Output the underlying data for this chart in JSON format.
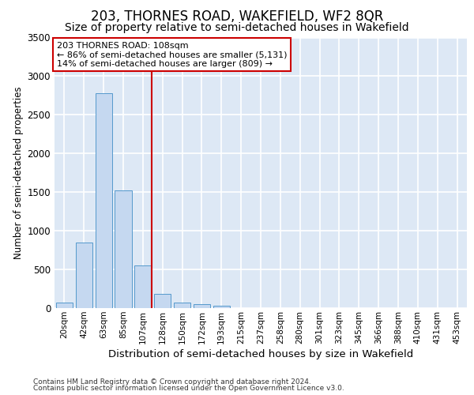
{
  "title1": "203, THORNES ROAD, WAKEFIELD, WF2 8QR",
  "title2": "Size of property relative to semi-detached houses in Wakefield",
  "xlabel": "Distribution of semi-detached houses by size in Wakefield",
  "ylabel": "Number of semi-detached properties",
  "footnote1": "Contains HM Land Registry data © Crown copyright and database right 2024.",
  "footnote2": "Contains public sector information licensed under the Open Government Licence v3.0.",
  "bar_labels": [
    "20sqm",
    "42sqm",
    "63sqm",
    "85sqm",
    "107sqm",
    "128sqm",
    "150sqm",
    "172sqm",
    "193sqm",
    "215sqm",
    "237sqm",
    "258sqm",
    "280sqm",
    "301sqm",
    "323sqm",
    "345sqm",
    "366sqm",
    "388sqm",
    "410sqm",
    "431sqm",
    "453sqm"
  ],
  "bar_values": [
    70,
    850,
    2780,
    1520,
    550,
    185,
    75,
    55,
    30,
    5,
    0,
    0,
    0,
    0,
    0,
    0,
    0,
    0,
    0,
    0,
    0
  ],
  "bar_color": "#c5d8f0",
  "bar_edge_color": "#5599cc",
  "vline_color": "#cc0000",
  "annotation_text": "203 THORNES ROAD: 108sqm\n← 86% of semi-detached houses are smaller (5,131)\n14% of semi-detached houses are larger (809) →",
  "annotation_box_color": "#ffffff",
  "annotation_box_edge": "#cc0000",
  "ylim": [
    0,
    3500
  ],
  "yticks": [
    0,
    500,
    1000,
    1500,
    2000,
    2500,
    3000,
    3500
  ],
  "background_color": "#dde8f5",
  "grid_color": "#ffffff",
  "title1_fontsize": 12,
  "title2_fontsize": 10,
  "ylabel_fontsize": 8.5,
  "xlabel_fontsize": 9.5,
  "tick_fontsize": 7.5,
  "footnote_fontsize": 6.5
}
